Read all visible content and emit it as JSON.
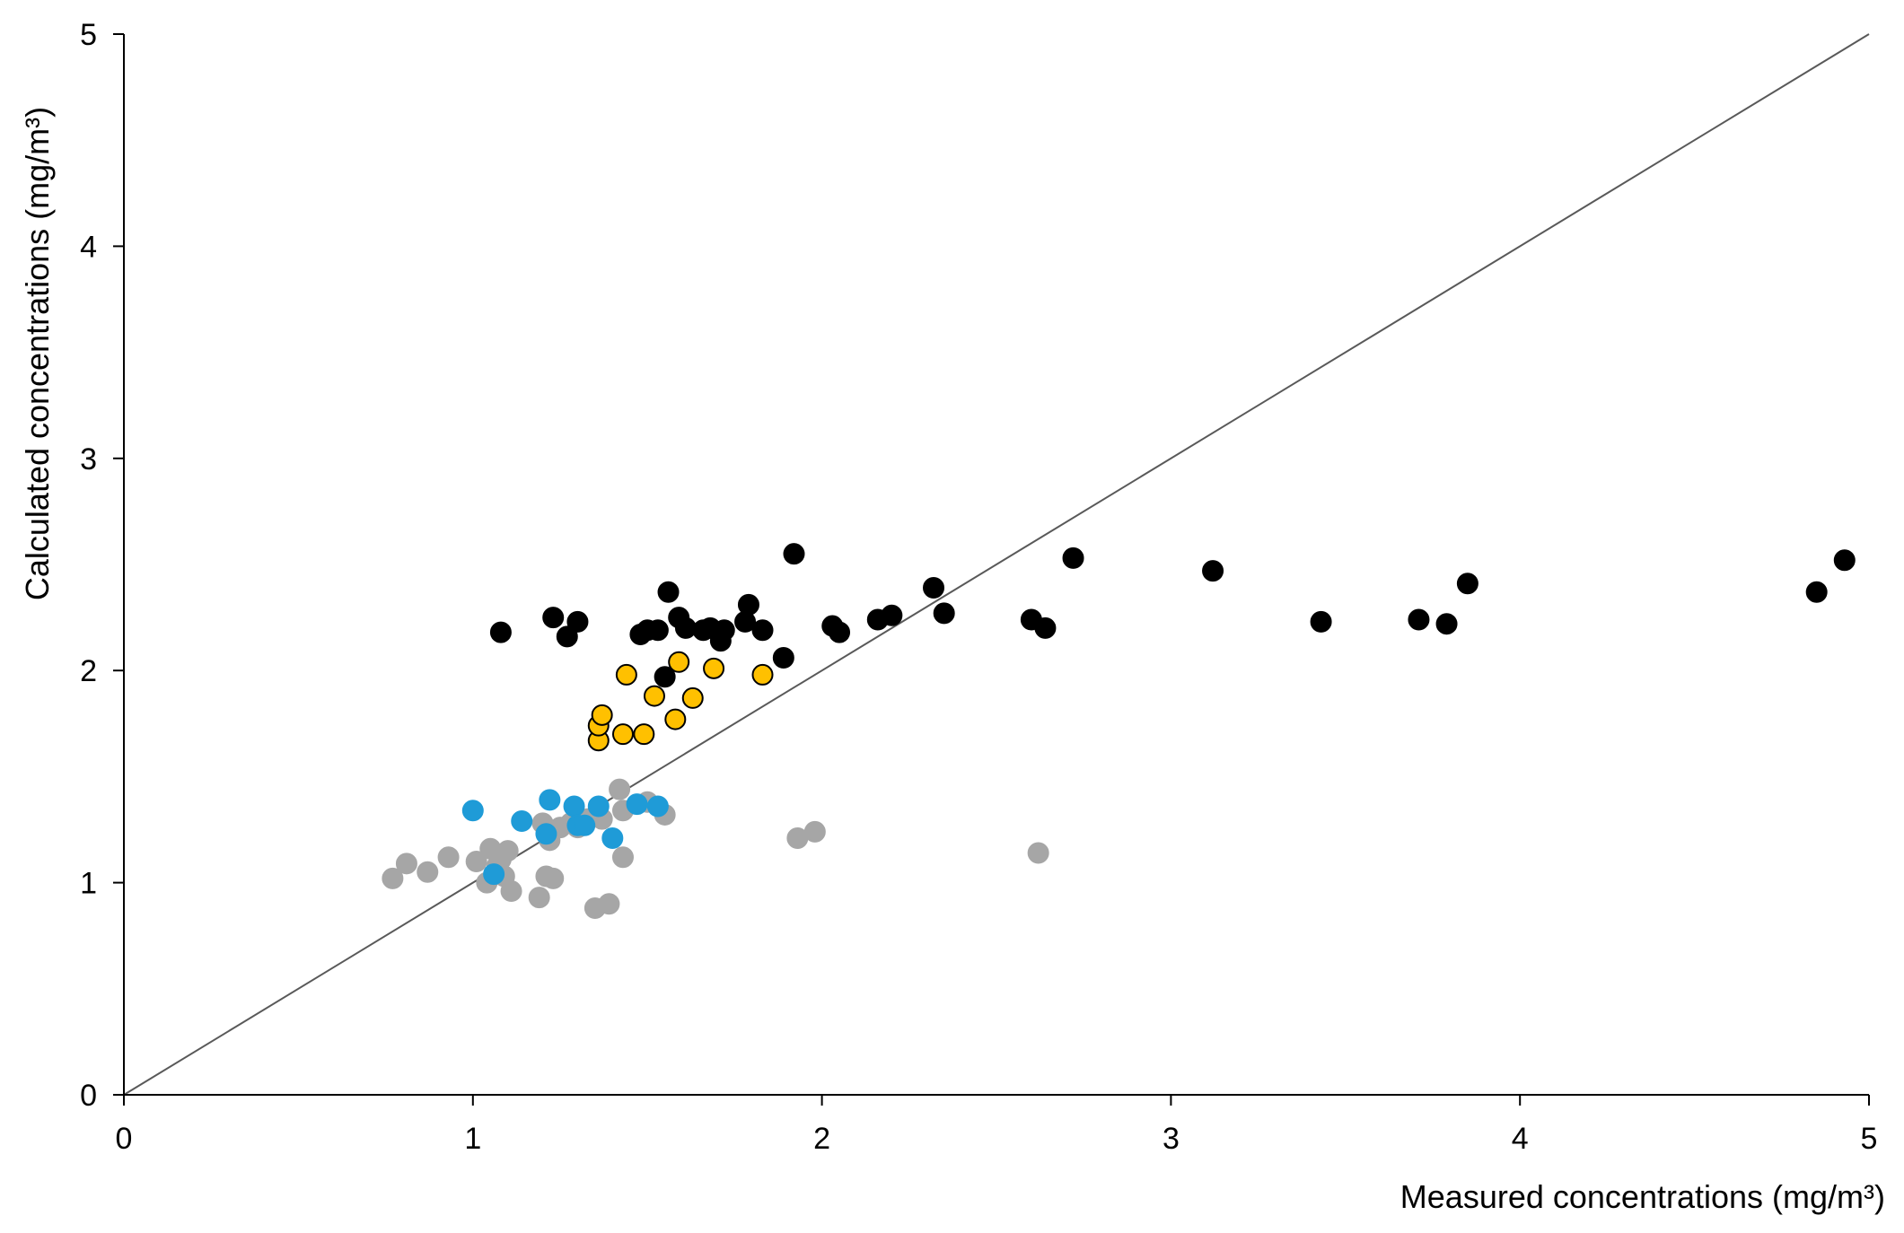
{
  "chart_data": {
    "type": "scatter",
    "title": "",
    "xlabel": "Measured concentrations (mg/m³)",
    "ylabel": "Calculated concentrations (mg/m³)",
    "xlim": [
      0,
      5
    ],
    "ylim": [
      0,
      5
    ],
    "x_ticks": [
      "0",
      "1",
      "2",
      "3",
      "4",
      "5"
    ],
    "y_ticks": [
      "0",
      "1",
      "2",
      "3",
      "4",
      "5"
    ],
    "grid": false,
    "legend": "none",
    "reference_line": {
      "from": [
        0,
        0
      ],
      "to": [
        5,
        5
      ],
      "color": "#595959"
    },
    "series": [
      {
        "color": "#000000",
        "stroke": "#000000",
        "points": [
          [
            1.08,
            2.18
          ],
          [
            1.23,
            2.25
          ],
          [
            1.27,
            2.16
          ],
          [
            1.3,
            2.23
          ],
          [
            1.48,
            2.17
          ],
          [
            1.5,
            2.19
          ],
          [
            1.53,
            2.19
          ],
          [
            1.55,
            1.97
          ],
          [
            1.56,
            2.37
          ],
          [
            1.59,
            2.25
          ],
          [
            1.61,
            2.2
          ],
          [
            1.66,
            2.19
          ],
          [
            1.68,
            2.2
          ],
          [
            1.71,
            2.14
          ],
          [
            1.72,
            2.19
          ],
          [
            1.78,
            2.23
          ],
          [
            1.79,
            2.31
          ],
          [
            1.83,
            2.19
          ],
          [
            1.89,
            2.06
          ],
          [
            1.92,
            2.55
          ],
          [
            2.03,
            2.21
          ],
          [
            2.05,
            2.18
          ],
          [
            2.16,
            2.24
          ],
          [
            2.2,
            2.26
          ],
          [
            2.32,
            2.39
          ],
          [
            2.35,
            2.27
          ],
          [
            2.6,
            2.24
          ],
          [
            2.64,
            2.2
          ],
          [
            2.72,
            2.53
          ],
          [
            3.12,
            2.47
          ],
          [
            3.43,
            2.23
          ],
          [
            3.71,
            2.24
          ],
          [
            3.79,
            2.22
          ],
          [
            3.85,
            2.41
          ],
          [
            4.85,
            2.37
          ],
          [
            4.93,
            2.52
          ]
        ]
      },
      {
        "color": "#FFC000",
        "stroke": "#000000",
        "points": [
          [
            1.36,
            1.67
          ],
          [
            1.36,
            1.74
          ],
          [
            1.37,
            1.79
          ],
          [
            1.43,
            1.7
          ],
          [
            1.44,
            1.98
          ],
          [
            1.49,
            1.7
          ],
          [
            1.52,
            1.88
          ],
          [
            1.58,
            1.77
          ],
          [
            1.59,
            2.04
          ],
          [
            1.63,
            1.87
          ],
          [
            1.69,
            2.01
          ],
          [
            1.83,
            1.98
          ]
        ]
      },
      {
        "color": "#A6A6A6",
        "stroke": "#A6A6A6",
        "points": [
          [
            0.77,
            1.02
          ],
          [
            0.81,
            1.09
          ],
          [
            0.87,
            1.05
          ],
          [
            0.93,
            1.12
          ],
          [
            1.01,
            1.1
          ],
          [
            1.04,
            1.0
          ],
          [
            1.05,
            1.16
          ],
          [
            1.07,
            1.08
          ],
          [
            1.08,
            1.11
          ],
          [
            1.09,
            1.03
          ],
          [
            1.1,
            1.15
          ],
          [
            1.11,
            0.96
          ],
          [
            1.19,
            0.93
          ],
          [
            1.2,
            1.28
          ],
          [
            1.21,
            1.03
          ],
          [
            1.22,
            1.2
          ],
          [
            1.23,
            1.02
          ],
          [
            1.25,
            1.26
          ],
          [
            1.28,
            1.28
          ],
          [
            1.3,
            1.26
          ],
          [
            1.33,
            1.3
          ],
          [
            1.35,
            0.88
          ],
          [
            1.37,
            1.3
          ],
          [
            1.39,
            0.9
          ],
          [
            1.42,
            1.44
          ],
          [
            1.43,
            1.12
          ],
          [
            1.43,
            1.34
          ],
          [
            1.5,
            1.38
          ],
          [
            1.55,
            1.32
          ],
          [
            1.93,
            1.21
          ],
          [
            1.98,
            1.24
          ],
          [
            2.62,
            1.14
          ]
        ]
      },
      {
        "color": "#1F9BD7",
        "stroke": "#1F9BD7",
        "points": [
          [
            1.0,
            1.34
          ],
          [
            1.06,
            1.04
          ],
          [
            1.14,
            1.29
          ],
          [
            1.21,
            1.23
          ],
          [
            1.22,
            1.39
          ],
          [
            1.29,
            1.36
          ],
          [
            1.3,
            1.27
          ],
          [
            1.32,
            1.27
          ],
          [
            1.36,
            1.36
          ],
          [
            1.4,
            1.21
          ],
          [
            1.47,
            1.37
          ],
          [
            1.53,
            1.36
          ]
        ]
      }
    ]
  }
}
